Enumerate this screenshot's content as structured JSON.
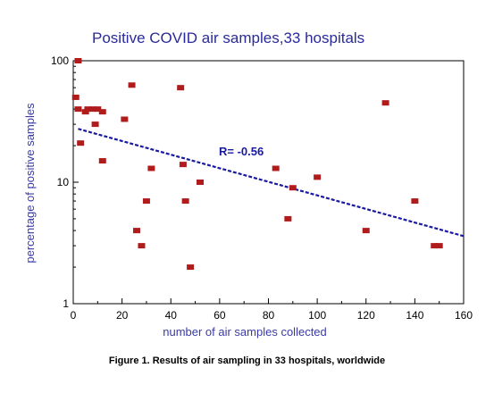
{
  "caption": "Figure 1. Results of air sampling in 33 hospitals, worldwide",
  "colors": {
    "marker": "#b01c1c",
    "trend": "#1a1aa0",
    "title": "#2a2a9a",
    "axis_label": "#3a3aa8"
  },
  "chart_data": {
    "type": "scatter",
    "title": "Positive COVID air samples,33 hospitals",
    "xlabel": "number of air samples collected",
    "ylabel": "percentage of positive samples",
    "xlim": [
      0,
      160
    ],
    "ylim": [
      1,
      100
    ],
    "yscale": "log",
    "grid": false,
    "xticks": [
      "0",
      "20",
      "40",
      "60",
      "80",
      "100",
      "120",
      "140",
      "160"
    ],
    "yticks": [
      {
        "value": 1,
        "label": "1"
      },
      {
        "value": 10,
        "label": "10"
      },
      {
        "value": 100,
        "label": "100"
      }
    ],
    "annotation": "R= -0.56",
    "trendline": {
      "x": [
        2,
        160
      ],
      "y": [
        27.5,
        3.6
      ]
    },
    "points": [
      {
        "x": 1,
        "y": 50
      },
      {
        "x": 2,
        "y": 100
      },
      {
        "x": 2,
        "y": 40
      },
      {
        "x": 3,
        "y": 21
      },
      {
        "x": 5,
        "y": 38
      },
      {
        "x": 6,
        "y": 40
      },
      {
        "x": 8,
        "y": 40
      },
      {
        "x": 9,
        "y": 30
      },
      {
        "x": 10,
        "y": 40
      },
      {
        "x": 12,
        "y": 38
      },
      {
        "x": 12,
        "y": 15
      },
      {
        "x": 21,
        "y": 33
      },
      {
        "x": 24,
        "y": 63
      },
      {
        "x": 26,
        "y": 4
      },
      {
        "x": 28,
        "y": 3
      },
      {
        "x": 30,
        "y": 7
      },
      {
        "x": 32,
        "y": 13
      },
      {
        "x": 44,
        "y": 60
      },
      {
        "x": 45,
        "y": 14
      },
      {
        "x": 46,
        "y": 7
      },
      {
        "x": 48,
        "y": 2
      },
      {
        "x": 52,
        "y": 10
      },
      {
        "x": 83,
        "y": 13
      },
      {
        "x": 88,
        "y": 5
      },
      {
        "x": 90,
        "y": 9
      },
      {
        "x": 100,
        "y": 11
      },
      {
        "x": 120,
        "y": 4
      },
      {
        "x": 128,
        "y": 45
      },
      {
        "x": 140,
        "y": 7
      },
      {
        "x": 148,
        "y": 3
      },
      {
        "x": 150,
        "y": 3
      }
    ]
  }
}
